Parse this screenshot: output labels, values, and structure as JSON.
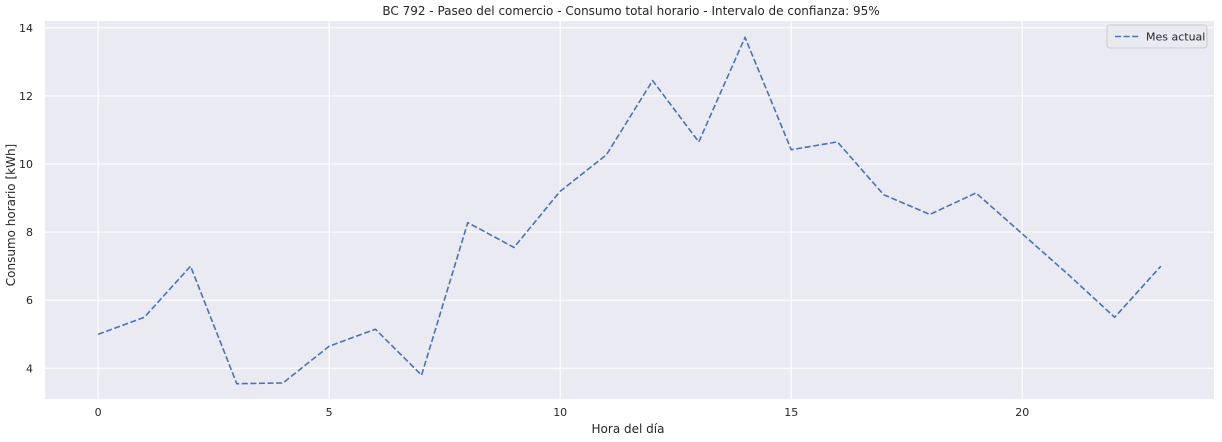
{
  "chart_data": {
    "type": "line",
    "title": "BC 792 - Paseo del comercio - Consumo total horario - Intervalo de confianza: 95%",
    "xlabel": "Hora del día",
    "ylabel": "Consumo horario [kWh]",
    "xlim": [
      -1.15,
      24.15
    ],
    "ylim": [
      3.1,
      14.2
    ],
    "xticks": [
      0,
      5,
      10,
      15,
      20
    ],
    "yticks": [
      4,
      6,
      8,
      10,
      12,
      14
    ],
    "grid": true,
    "legend_position": "top-right",
    "background_color": "#eaeaf2",
    "grid_color": "#ffffff",
    "x": [
      0,
      1,
      2,
      3,
      4,
      5,
      6,
      7,
      8,
      9,
      10,
      11,
      12,
      13,
      14,
      15,
      16,
      17,
      18,
      19,
      20,
      21,
      22,
      23
    ],
    "series": [
      {
        "name": "Mes actual",
        "color": "#4c72b0",
        "line_style": "dashed",
        "values": [
          5.0,
          5.5,
          7.0,
          3.55,
          3.57,
          4.65,
          5.15,
          3.8,
          8.28,
          7.55,
          9.2,
          10.27,
          12.45,
          10.65,
          13.72,
          10.42,
          10.65,
          9.1,
          8.52,
          9.15,
          7.95,
          6.75,
          5.5,
          7.0
        ]
      }
    ]
  }
}
